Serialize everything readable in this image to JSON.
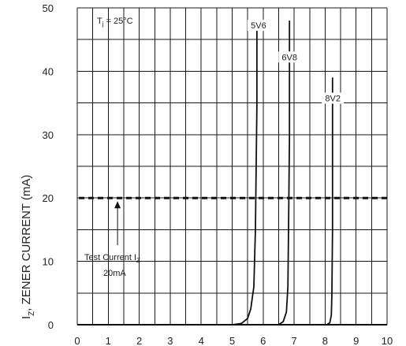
{
  "chart_data": {
    "type": "line",
    "title": "",
    "xlabel": "",
    "ylabel_main": "I",
    "ylabel_sub": "Z",
    "ylabel_rest": ", ZENER CURRENT (mA)",
    "xlim": [
      0,
      10
    ],
    "ylim": [
      0,
      50
    ],
    "x_ticks": [
      "0",
      "1",
      "2",
      "3",
      "4",
      "5",
      "6",
      "7",
      "8",
      "9",
      "10"
    ],
    "y_ticks": [
      "0",
      "10",
      "20",
      "30",
      "40",
      "50"
    ],
    "grid": true,
    "annotations": {
      "temperature_main": "T",
      "temperature_sub": "j",
      "temperature_rest": " = 25°C",
      "test_current_line1": "Test Current I",
      "test_current_sub": "Z",
      "test_current_line2": "20mA",
      "test_current_value": 20,
      "test_current_arrow_x": 1.3
    },
    "series": [
      {
        "name": "5V6",
        "label": "5V6",
        "label_at": [
          5.85,
          47
        ],
        "x": [
          5.0,
          5.3,
          5.5,
          5.6,
          5.7,
          5.75,
          5.8,
          5.8
        ],
        "y": [
          0,
          0.2,
          1,
          2.5,
          6,
          15,
          35,
          48
        ]
      },
      {
        "name": "6V8",
        "label": "6V8",
        "label_at": [
          6.85,
          42
        ],
        "x": [
          6.5,
          6.65,
          6.75,
          6.8,
          6.82,
          6.85,
          6.85
        ],
        "y": [
          0,
          0.5,
          2,
          6,
          15,
          30,
          48
        ]
      },
      {
        "name": "8V2",
        "label": "8V2",
        "label_at": [
          8.25,
          35.5
        ],
        "x": [
          8.05,
          8.15,
          8.2,
          8.22,
          8.24,
          8.24
        ],
        "y": [
          0,
          0.3,
          1.5,
          5,
          15,
          39
        ]
      }
    ]
  }
}
